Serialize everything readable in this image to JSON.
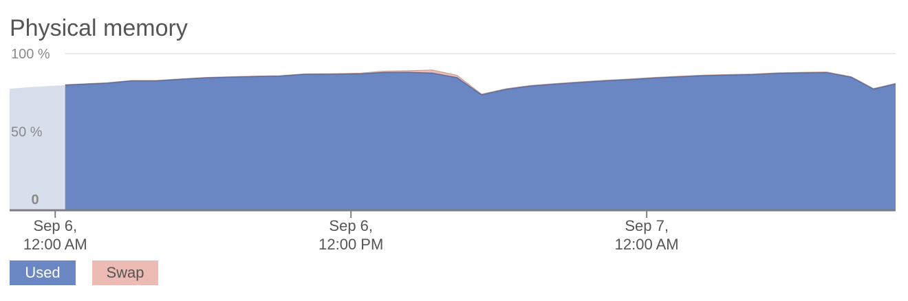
{
  "title": "Physical memory",
  "colors": {
    "used": "#6a87c4",
    "swap": "#ebbbb4",
    "used_line": "#5a6f9e",
    "swap_line": "#c8a19d",
    "faded_region": "#d7deec",
    "axis": "#8a8a8a",
    "grid": "#e2e2e2"
  },
  "chart_data": {
    "type": "area",
    "title": "Physical memory",
    "ylim": [
      0,
      100
    ],
    "y_ticks": [
      {
        "value": 100,
        "label": "100 %"
      },
      {
        "value": 50,
        "label": "50 %"
      },
      {
        "value": 0,
        "label": "0"
      }
    ],
    "x_ticks": [
      {
        "hour": 0,
        "line1": "Sep 6,",
        "line2": "12:00 AM"
      },
      {
        "hour": 12,
        "line1": "Sep 6,",
        "line2": "12:00 PM"
      },
      {
        "hour": 24,
        "line1": "Sep 7,",
        "line2": "12:00 AM"
      }
    ],
    "x_unit": "hours from Sep 6, 12:00 AM",
    "xlim": [
      -1.85,
      34.1
    ],
    "data_start_hour": 0.4,
    "stacked": true,
    "grid": true,
    "legend_position": "bottom-left",
    "series": [
      {
        "name": "Used",
        "points": [
          [
            -1.85,
            77.4
          ],
          [
            -1.0,
            78.6
          ],
          [
            0.4,
            79.8
          ],
          [
            2.1,
            81.0
          ],
          [
            3.1,
            82.5
          ],
          [
            4.1,
            82.5
          ],
          [
            5.2,
            83.6
          ],
          [
            6.1,
            84.4
          ],
          [
            7.2,
            84.9
          ],
          [
            8.2,
            85.3
          ],
          [
            9.1,
            85.5
          ],
          [
            10.1,
            86.7
          ],
          [
            11.3,
            86.8
          ],
          [
            12.4,
            87.0
          ],
          [
            13.3,
            87.9
          ],
          [
            14.3,
            88.0
          ],
          [
            15.3,
            87.5
          ],
          [
            16.3,
            84.6
          ],
          [
            17.3,
            73.5
          ],
          [
            18.3,
            77.1
          ],
          [
            19.3,
            79.2
          ],
          [
            20.3,
            80.4
          ],
          [
            21.3,
            81.5
          ],
          [
            22.3,
            82.5
          ],
          [
            23.3,
            83.3
          ],
          [
            24.3,
            84.3
          ],
          [
            25.3,
            85.1
          ],
          [
            26.3,
            85.8
          ],
          [
            27.3,
            86.2
          ],
          [
            28.3,
            86.5
          ],
          [
            29.3,
            87.3
          ],
          [
            30.3,
            87.6
          ],
          [
            31.3,
            87.8
          ],
          [
            32.3,
            84.8
          ],
          [
            33.2,
            77.2
          ],
          [
            34.1,
            80.5
          ]
        ]
      },
      {
        "name": "Swap",
        "points": [
          [
            -1.85,
            0.3
          ],
          [
            -1.0,
            0.3
          ],
          [
            0.4,
            0.3
          ],
          [
            2.1,
            0.3
          ],
          [
            3.1,
            0.3
          ],
          [
            4.1,
            0.3
          ],
          [
            5.2,
            0.3
          ],
          [
            6.1,
            0.3
          ],
          [
            7.2,
            0.3
          ],
          [
            8.2,
            0.3
          ],
          [
            9.1,
            0.3
          ],
          [
            10.1,
            0.3
          ],
          [
            11.3,
            0.3
          ],
          [
            12.4,
            0.5
          ],
          [
            13.3,
            0.8
          ],
          [
            14.3,
            1.0
          ],
          [
            15.3,
            2.0
          ],
          [
            16.3,
            1.5
          ],
          [
            17.3,
            0.5
          ],
          [
            18.3,
            0.4
          ],
          [
            19.3,
            0.4
          ],
          [
            20.3,
            0.4
          ],
          [
            21.3,
            0.4
          ],
          [
            22.3,
            0.4
          ],
          [
            23.3,
            0.4
          ],
          [
            24.3,
            0.4
          ],
          [
            25.3,
            0.4
          ],
          [
            26.3,
            0.4
          ],
          [
            27.3,
            0.4
          ],
          [
            28.3,
            0.4
          ],
          [
            29.3,
            0.4
          ],
          [
            30.3,
            0.4
          ],
          [
            31.3,
            0.4
          ],
          [
            32.3,
            0.4
          ],
          [
            33.2,
            0.4
          ],
          [
            34.1,
            0.4
          ]
        ]
      }
    ]
  },
  "legend": {
    "used_label": "Used",
    "swap_label": "Swap"
  }
}
